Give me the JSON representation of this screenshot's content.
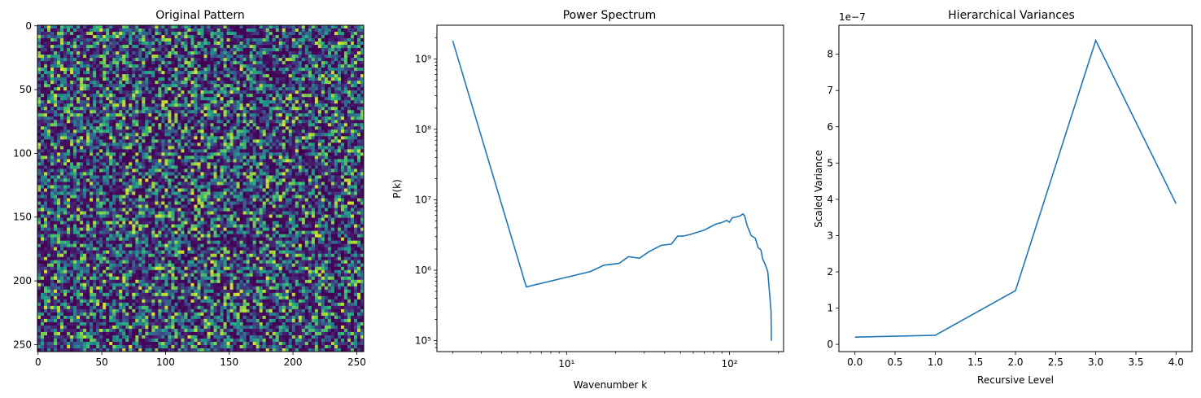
{
  "chart_data": [
    {
      "type": "heatmap",
      "title": "Original Pattern",
      "xlabel": "",
      "ylabel": "",
      "xlim": [
        0,
        255
      ],
      "ylim": [
        255,
        0
      ],
      "x_tick_labels": [
        "0",
        "50",
        "100",
        "150",
        "200",
        "250"
      ],
      "y_tick_labels": [
        "0",
        "50",
        "100",
        "150",
        "200",
        "250"
      ],
      "grid_size": [
        256,
        256
      ],
      "colormap": "viridis",
      "dominant_color": "#3b2d80"
    },
    {
      "type": "line",
      "title": "Power Spectrum",
      "xlabel": "Wavenumber k",
      "ylabel": "P(k)",
      "xscale": "log",
      "yscale": "log",
      "x_tick_labels": [
        "10¹",
        "10²"
      ],
      "y_tick_labels": [
        "10⁵",
        "10⁶",
        "10⁷",
        "10⁸",
        "10⁹"
      ],
      "xlim": [
        1.6,
        215
      ],
      "ylim": [
        70000,
        3000000000
      ],
      "series": [
        {
          "color": "#1f77b4",
          "x": [
            2,
            5.66,
            14,
            17,
            21,
            24,
            28,
            32,
            38,
            44,
            48,
            52,
            58,
            64,
            70,
            76,
            82,
            90,
            96,
            100,
            104,
            110,
            116,
            121,
            124,
            128,
            136,
            144,
            150,
            156,
            160,
            166,
            172,
            176,
            180,
            181
          ],
          "y": [
            1800000000,
            580000,
            960000,
            1180000,
            1250000,
            1560000,
            1480000,
            1830000,
            2250000,
            2350000,
            3050000,
            3050000,
            3230000,
            3480000,
            3700000,
            4100000,
            4500000,
            4750000,
            5100000,
            4800000,
            5550000,
            5700000,
            5900000,
            6300000,
            5900000,
            4400000,
            3100000,
            2850000,
            2100000,
            1950000,
            1450000,
            1200000,
            950000,
            500000,
            260000,
            100000
          ]
        }
      ],
      "grid": false
    },
    {
      "type": "line",
      "title": "Hierarchical Variances",
      "xlabel": "Recursive Level",
      "ylabel": "Scaled Variance",
      "offset_label": "1e−7",
      "x_tick_labels": [
        "0.0",
        "0.5",
        "1.0",
        "1.5",
        "2.0",
        "2.5",
        "3.0",
        "3.5",
        "4.0"
      ],
      "y_tick_labels": [
        "0",
        "1",
        "2",
        "3",
        "4",
        "5",
        "6",
        "7",
        "8"
      ],
      "xlim": [
        -0.2,
        4.2
      ],
      "ylim": [
        -0.2,
        8.8
      ],
      "series": [
        {
          "color": "#1f77b4",
          "x": [
            0,
            1,
            2,
            3,
            4
          ],
          "y": [
            0.2,
            0.25,
            1.48,
            8.38,
            3.88
          ]
        }
      ],
      "grid": false
    }
  ]
}
